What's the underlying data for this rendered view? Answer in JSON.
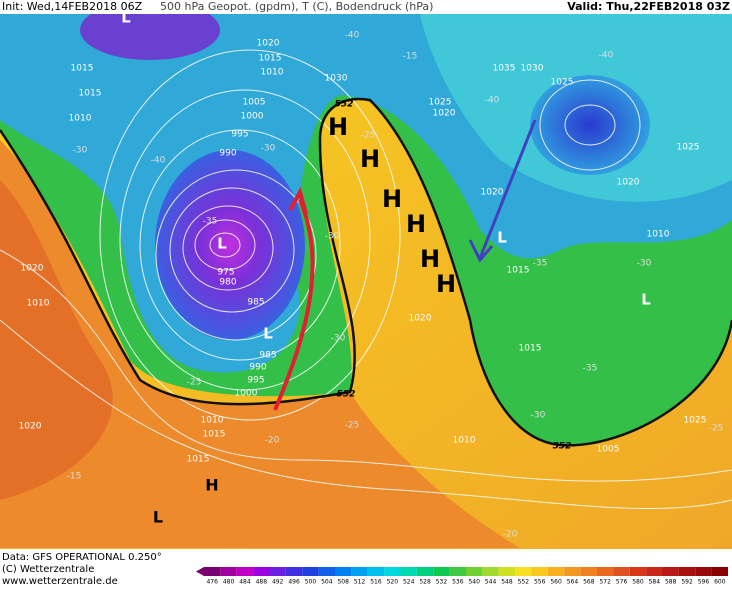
{
  "header": {
    "init": "Init: Wed,14FEB2018 06Z",
    "product": "500 hPa Geopot. (gpdm), T (C), Bodendruck (hPa)",
    "valid": "Valid: Thu,22FEB2018 03Z"
  },
  "map": {
    "isobar_labels": [
      "1015",
      "1015",
      "1010",
      "1020",
      "1015",
      "1010",
      "1005",
      "1000",
      "995",
      "990",
      "1030",
      "1035",
      "1030",
      "1025",
      "1025",
      "1020",
      "1025",
      "1020",
      "1020",
      "1010",
      "1015",
      "975",
      "980",
      "985",
      "985",
      "990",
      "995",
      "1000",
      "1010",
      "1015",
      "1020",
      "1015",
      "1010",
      "1005",
      "1025",
      "1020",
      "1015",
      "1020",
      "1010"
    ],
    "temperature_labels": [
      "-30",
      "-40",
      "-30",
      "-40",
      "-35",
      "-25",
      "-40",
      "-35",
      "-30",
      "-35",
      "-30",
      "-30",
      "-25",
      "-20",
      "-25",
      "-30",
      "-25",
      "-15",
      "-15",
      "-20",
      "-40"
    ],
    "geopotential_labels": [
      "552",
      "552",
      "552"
    ],
    "pressure_centers": [
      "L",
      "L",
      "L",
      "L",
      "L",
      "L",
      "H",
      "H",
      "H",
      "H",
      "H",
      "H",
      "H"
    ]
  },
  "footer": {
    "data": "Data: GFS OPERATIONAL 0.250°",
    "copyright": "(C) Wetterzentrale",
    "url": "www.wetterzentrale.de",
    "colorbar": [
      "476",
      "480",
      "484",
      "488",
      "492",
      "496",
      "500",
      "504",
      "508",
      "512",
      "516",
      "520",
      "524",
      "528",
      "532",
      "536",
      "540",
      "544",
      "548",
      "552",
      "556",
      "560",
      "564",
      "568",
      "572",
      "576",
      "580",
      "584",
      "588",
      "592",
      "596",
      "600"
    ]
  }
}
